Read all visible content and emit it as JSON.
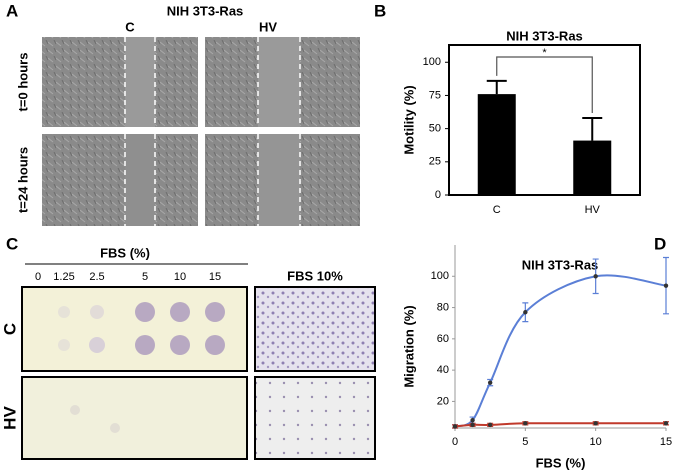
{
  "figure": {
    "panel_a": {
      "letter": "A",
      "title": "NIH 3T3-Ras",
      "columns": [
        "C",
        "HV"
      ],
      "rows": [
        "t=0 hours",
        "t=24 hours"
      ]
    },
    "panel_b": {
      "letter": "B"
    },
    "panel_c": {
      "letter": "C",
      "axis_label": "FBS (%)",
      "concentrations": [
        "0",
        "1.25",
        "2.5",
        "5",
        "10",
        "15"
      ],
      "rows": [
        "C",
        "HV"
      ],
      "image_label": "FBS 10%"
    },
    "panel_d": {
      "letter": "D"
    }
  },
  "chart_data": [
    {
      "type": "bar",
      "title": "NIH 3T3-Ras",
      "y_label": "Motility (%)",
      "categories": [
        "C",
        "HV"
      ],
      "values": [
        76,
        41
      ],
      "errors": [
        10,
        17
      ],
      "color": "#000000",
      "ylim": [
        0,
        113
      ],
      "yticks": [
        0,
        25,
        50,
        75,
        100
      ],
      "annotation": "*"
    },
    {
      "type": "line",
      "title": "NIH 3T3-Ras",
      "x_label": "FBS (%)",
      "y_label": "Migration (%)",
      "x": [
        0,
        1.25,
        2.5,
        5,
        10,
        15
      ],
      "series": [
        {
          "color": "#5b7fd6",
          "values": [
            4,
            8,
            32,
            77,
            100,
            94
          ],
          "errors": [
            1,
            2,
            2,
            6,
            11,
            18
          ]
        },
        {
          "color": "#c0392b",
          "values": [
            4,
            5,
            5,
            6,
            6,
            6
          ],
          "errors": [
            1,
            1,
            1,
            1,
            1,
            1
          ]
        }
      ],
      "xlim": [
        0,
        15
      ],
      "ylim": [
        3,
        120
      ],
      "xticks": [
        0,
        5,
        10,
        15
      ],
      "yticks": [
        20,
        40,
        60,
        80,
        100
      ]
    }
  ]
}
